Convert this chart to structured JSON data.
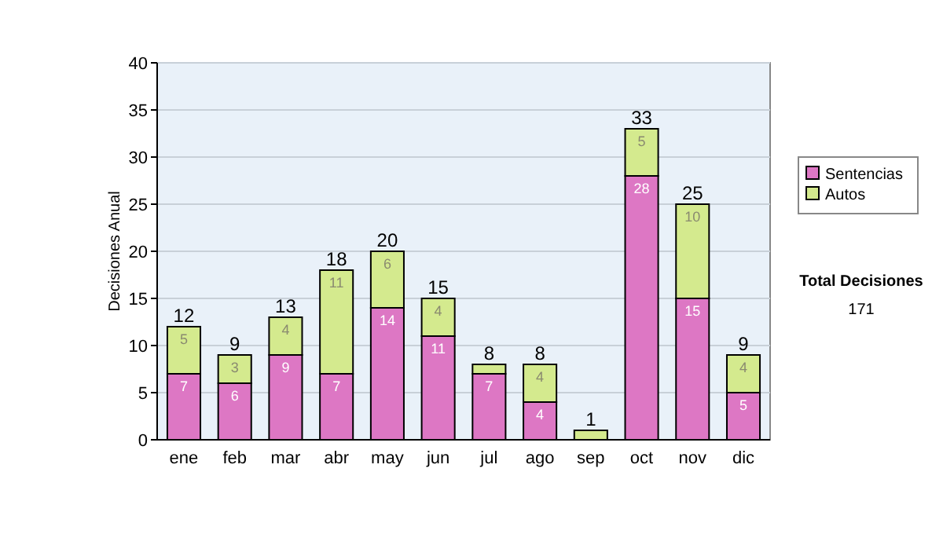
{
  "chart_data": {
    "type": "bar",
    "stacked": true,
    "ylabel": "Decisiones Anual",
    "categories": [
      "ene",
      "feb",
      "mar",
      "abr",
      "may",
      "jun",
      "jul",
      "ago",
      "sep",
      "oct",
      "nov",
      "dic"
    ],
    "series": [
      {
        "name": "Sentencias",
        "color": "#dd77c4",
        "values": [
          7,
          6,
          9,
          7,
          14,
          11,
          7,
          4,
          0,
          28,
          15,
          5
        ],
        "value_labels": [
          "7",
          "6",
          "9",
          "7",
          "14",
          "11",
          "7",
          "4",
          null,
          "28",
          "15",
          "5"
        ]
      },
      {
        "name": "Autos",
        "color": "#d4ea8e",
        "values": [
          5,
          3,
          4,
          11,
          6,
          4,
          1,
          4,
          1,
          5,
          10,
          4
        ],
        "value_labels": [
          "5",
          "3",
          "4",
          "11",
          "6",
          "4",
          null,
          "4",
          null,
          "5",
          "10",
          "4"
        ]
      }
    ],
    "totals": [
      "12",
      "9",
      "13",
      "18",
      "20",
      "15",
      "8",
      "8",
      "1",
      "33",
      "25",
      "9"
    ],
    "ylim": [
      0,
      40
    ],
    "yticks": [
      0,
      5,
      10,
      15,
      20,
      25,
      30,
      35,
      40
    ],
    "grid": "y",
    "legend": "right",
    "annotations": [
      "Total Decisiones",
      "171"
    ]
  }
}
